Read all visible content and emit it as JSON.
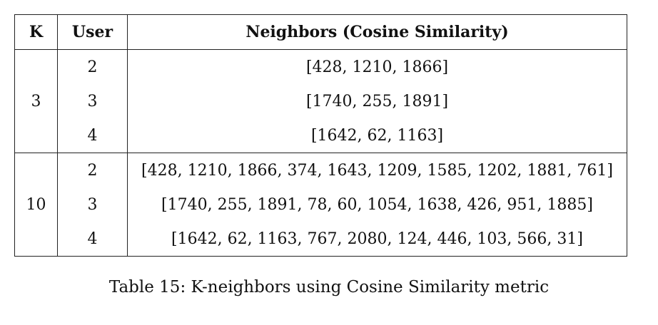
{
  "table": {
    "headers": {
      "k": "K",
      "user": "User",
      "neighbors": "Neighbors (Cosine Similarity)"
    },
    "groups": [
      {
        "k": "3",
        "rows": [
          {
            "user": "2",
            "neighbors": "[428, 1210, 1866]"
          },
          {
            "user": "3",
            "neighbors": "[1740, 255, 1891]"
          },
          {
            "user": "4",
            "neighbors": "[1642, 62, 1163]"
          }
        ]
      },
      {
        "k": "10",
        "rows": [
          {
            "user": "2",
            "neighbors": "[428, 1210, 1866, 374, 1643, 1209, 1585, 1202, 1881, 761]"
          },
          {
            "user": "3",
            "neighbors": "[1740, 255, 1891, 78, 60, 1054, 1638, 426, 951, 1885]"
          },
          {
            "user": "4",
            "neighbors": "[1642, 62, 1163, 767, 2080, 124, 446, 103, 566, 31]"
          }
        ]
      }
    ]
  },
  "caption": "Table 15: K-neighbors using Cosine Similarity metric"
}
